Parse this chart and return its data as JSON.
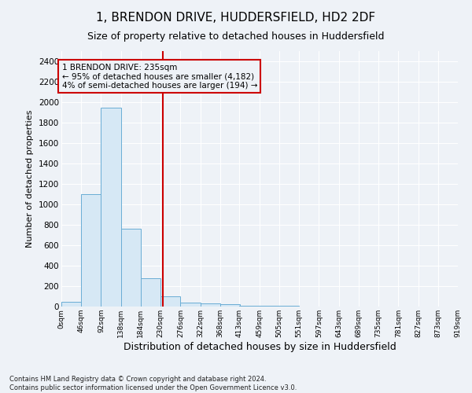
{
  "title": "1, BRENDON DRIVE, HUDDERSFIELD, HD2 2DF",
  "subtitle": "Size of property relative to detached houses in Huddersfield",
  "xlabel": "Distribution of detached houses by size in Huddersfield",
  "ylabel": "Number of detached properties",
  "footnote1": "Contains HM Land Registry data © Crown copyright and database right 2024.",
  "footnote2": "Contains public sector information licensed under the Open Government Licence v3.0.",
  "bin_edges": [
    0,
    46,
    92,
    138,
    184,
    230,
    276,
    322,
    368,
    413,
    459,
    505,
    551,
    597,
    643,
    689,
    735,
    781,
    827,
    873,
    919
  ],
  "bar_heights": [
    50,
    1100,
    1950,
    760,
    280,
    100,
    40,
    30,
    20,
    10,
    5,
    5,
    3,
    2,
    2,
    2,
    2,
    1,
    1,
    1
  ],
  "bar_color": "#d6e8f5",
  "bar_edge_color": "#6aadd5",
  "property_size": 235,
  "annotation_line1": "1 BRENDON DRIVE: 235sqm",
  "annotation_line2": "← 95% of detached houses are smaller (4,182)",
  "annotation_line3": "4% of semi-detached houses are larger (194) →",
  "annotation_box_color": "#cc0000",
  "vline_color": "#cc0000",
  "ylim": [
    0,
    2500
  ],
  "yticks": [
    0,
    200,
    400,
    600,
    800,
    1000,
    1200,
    1400,
    1600,
    1800,
    2000,
    2200,
    2400
  ],
  "tick_labels": [
    "0sqm",
    "46sqm",
    "92sqm",
    "138sqm",
    "184sqm",
    "230sqm",
    "276sqm",
    "322sqm",
    "368sqm",
    "413sqm",
    "459sqm",
    "505sqm",
    "551sqm",
    "597sqm",
    "643sqm",
    "689sqm",
    "735sqm",
    "781sqm",
    "827sqm",
    "873sqm",
    "919sqm"
  ],
  "bg_color": "#eef2f7",
  "grid_color": "#ffffff"
}
